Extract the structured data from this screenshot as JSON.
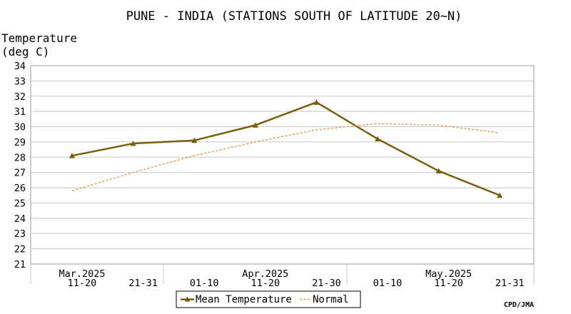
{
  "chart_data": {
    "type": "line",
    "title": "PUNE - INDIA (STATIONS SOUTH OF LATITUDE 20~N)",
    "ylabel": [
      "Temperature",
      "(deg C)"
    ],
    "ylim": [
      21,
      34
    ],
    "yticks": [
      21,
      22,
      23,
      24,
      25,
      26,
      27,
      28,
      29,
      30,
      31,
      32,
      33,
      34
    ],
    "grid": true,
    "legend_placement": "bottom-center",
    "x_labels": [
      [
        "Mar.2025",
        "11-20"
      ],
      [
        "",
        "21-31"
      ],
      [
        "",
        "01-10"
      ],
      [
        "Apr.2025",
        "11-20"
      ],
      [
        "",
        "21-30"
      ],
      [
        "",
        "01-10"
      ],
      [
        "May.2025",
        "11-20"
      ],
      [
        "",
        "21-31"
      ]
    ],
    "series": [
      {
        "name": "Mean Temperature",
        "style": "solid-triangle",
        "color": "#7a5c0c",
        "values": [
          28.1,
          28.9,
          29.1,
          30.1,
          31.6,
          29.2,
          27.1,
          25.5
        ]
      },
      {
        "name": "Normal",
        "style": "dashed",
        "color": "#f08a3c",
        "values": [
          25.8,
          27.0,
          28.1,
          29.0,
          29.8,
          30.2,
          30.1,
          29.6
        ]
      }
    ],
    "credit": "CPD/JMA"
  }
}
